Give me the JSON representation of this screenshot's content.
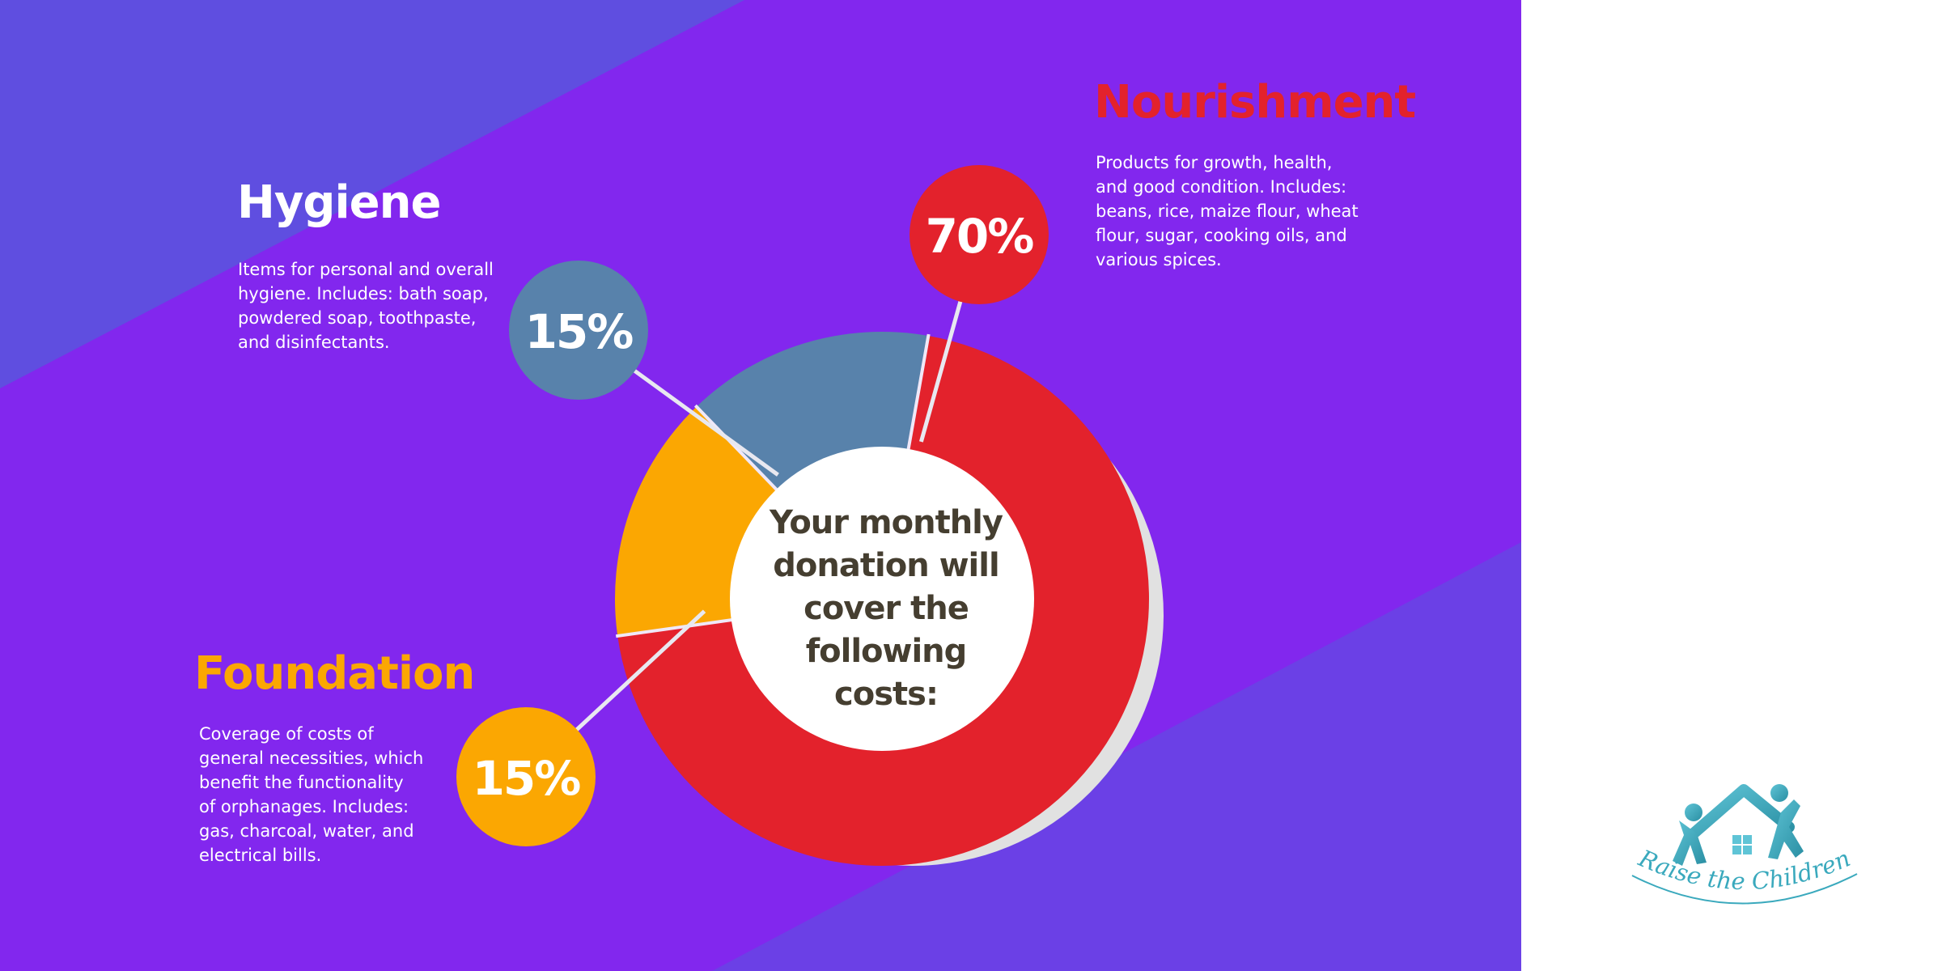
{
  "chart_data": {
    "type": "pie",
    "style": "donut",
    "center_label": "Your monthly donation will cover the following costs:",
    "center_lines": [
      "Your monthly",
      "donation will",
      "cover the",
      "following",
      "costs:"
    ],
    "slices": [
      {
        "name": "Nourishment",
        "value": 70,
        "label": "70%",
        "color": "#e3222c"
      },
      {
        "name": "Foundation",
        "value": 15,
        "label": "15%",
        "color": "#fba702"
      },
      {
        "name": "Hygiene",
        "value": 15,
        "label": "15%",
        "color": "#5882ab"
      }
    ]
  },
  "sections": {
    "nourishment": {
      "title": "Nourishment",
      "color": "#e3222c",
      "description": "Products for growth, health,\nand good condition. Includes:\nbeans, rice, maize flour, wheat\nflour, sugar, cooking oils, and\nvarious spices."
    },
    "hygiene": {
      "title": "Hygiene",
      "color": "#ffffff",
      "description": "Items for personal and overall\nhygiene. Includes: bath soap,\npowdered  soap, toothpaste,\nand disinfectants."
    },
    "foundation": {
      "title": "Foundation",
      "color": "#fba702",
      "description": "Coverage of costs of\ngeneral necessities, which\nbenefit the functionality\nof orphanages. Includes:\ngas, charcoal, water, and\nelectrical bills."
    }
  },
  "logo": {
    "text": "Raise the Children",
    "icon": "house-with-children-icon",
    "color": "#3aa9bd"
  },
  "colors": {
    "background": "#8227ee",
    "background_band": "#6246e2",
    "shadow": "#e0e0e0",
    "center_text": "#453e30"
  }
}
